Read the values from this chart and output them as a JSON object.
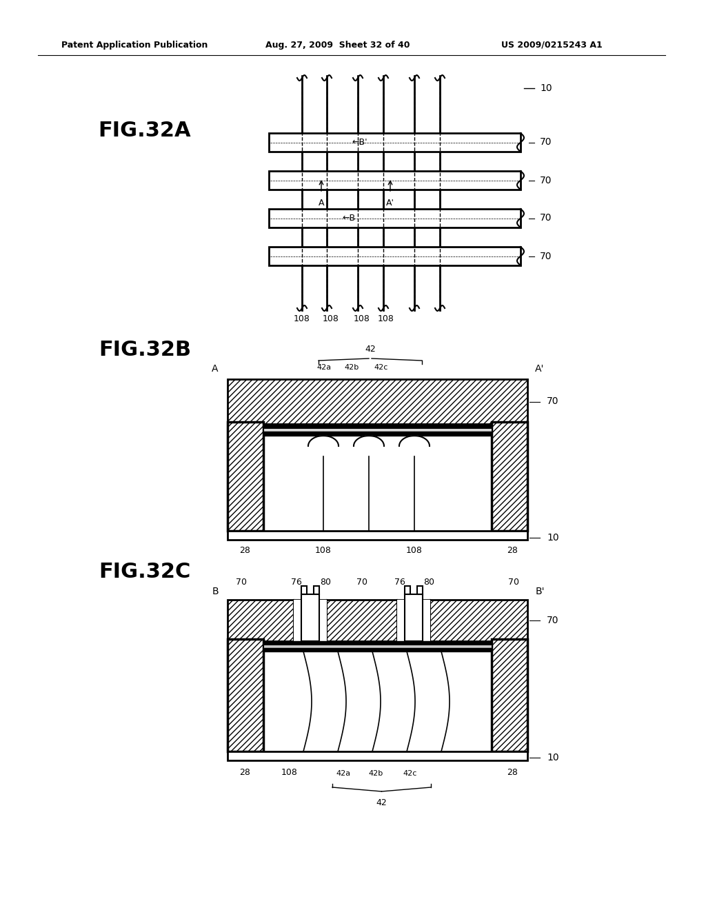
{
  "header_left": "Patent Application Publication",
  "header_mid": "Aug. 27, 2009  Sheet 32 of 40",
  "header_right": "US 2009/0215243 A1",
  "fig32a_label": "FIG.32A",
  "fig32b_label": "FIG.32B",
  "fig32c_label": "FIG.32C",
  "bg_color": "#ffffff",
  "line_color": "#000000",
  "label_color": "#000000"
}
